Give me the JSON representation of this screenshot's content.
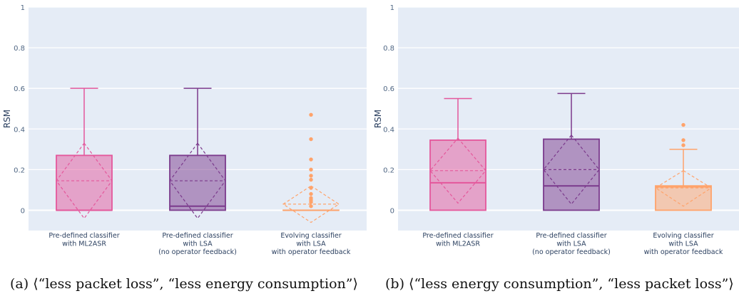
{
  "chart_data": [
    {
      "type": "box",
      "ylabel": "RSM",
      "ylim": [
        -0.1,
        1
      ],
      "yticks": [
        "0",
        "0.2",
        "0.4",
        "0.6",
        "0.8",
        "1"
      ],
      "grid": true,
      "categories": [
        [
          "Pre-defined classifier",
          "with ML2ASR"
        ],
        [
          "Pre-defined classifier",
          "with LSA",
          "(no operator feedback)"
        ],
        [
          "Evolving classifier",
          "with LSA",
          "with operator feedback"
        ]
      ],
      "boxes": [
        {
          "color": "#e4579b",
          "q1": 0,
          "median": 0,
          "q3": 0.27,
          "whisker_low": 0,
          "whisker_high": 0.6,
          "mean": 0.145,
          "mean_low": -0.04,
          "mean_high": 0.33,
          "outliers": []
        },
        {
          "color": "#7b3a8c",
          "q1": 0,
          "median": 0.02,
          "q3": 0.27,
          "whisker_low": 0,
          "whisker_high": 0.6,
          "mean": 0.145,
          "mean_low": -0.04,
          "mean_high": 0.33,
          "outliers": []
        },
        {
          "color": "#ffa36b",
          "q1": 0,
          "median": 0,
          "q3": 0,
          "whisker_low": 0,
          "whisker_high": 0,
          "mean": 0.03,
          "mean_low": -0.06,
          "mean_high": 0.12,
          "outliers": [
            0.02,
            0.04,
            0.05,
            0.06,
            0.08,
            0.11,
            0.15,
            0.17,
            0.2,
            0.25,
            0.35,
            0.47
          ]
        }
      ]
    },
    {
      "type": "box",
      "ylabel": "RSM",
      "ylim": [
        -0.1,
        1
      ],
      "yticks": [
        "0",
        "0.2",
        "0.4",
        "0.6",
        "0.8",
        "1"
      ],
      "grid": true,
      "categories": [
        [
          "Pre-defined classifier",
          "with ML2ASR"
        ],
        [
          "Pre-defined classifier",
          "with LSA",
          "(no operator feedback)"
        ],
        [
          "Evolving classifier",
          "with LSA",
          "with operator feedback"
        ]
      ],
      "boxes": [
        {
          "color": "#e4579b",
          "q1": 0,
          "median": 0.135,
          "q3": 0.345,
          "whisker_low": 0,
          "whisker_high": 0.55,
          "mean": 0.195,
          "mean_low": 0.035,
          "mean_high": 0.355,
          "outliers": []
        },
        {
          "color": "#7b3a8c",
          "q1": 0,
          "median": 0.12,
          "q3": 0.35,
          "whisker_low": 0,
          "whisker_high": 0.575,
          "mean": 0.2,
          "mean_low": 0.03,
          "mean_high": 0.37,
          "outliers": []
        },
        {
          "color": "#ffa36b",
          "q1": 0,
          "median": 0.115,
          "q3": 0.12,
          "whisker_low": 0,
          "whisker_high": 0.3,
          "mean": 0.11,
          "mean_low": 0.02,
          "mean_high": 0.195,
          "outliers": [
            0.32,
            0.345,
            0.42
          ]
        }
      ]
    }
  ],
  "captions": [
    "(a) ⟨“less packet loss”, “less energy consumption”⟩",
    "(b) ⟨“less energy consumption”, “less packet loss”⟩"
  ]
}
